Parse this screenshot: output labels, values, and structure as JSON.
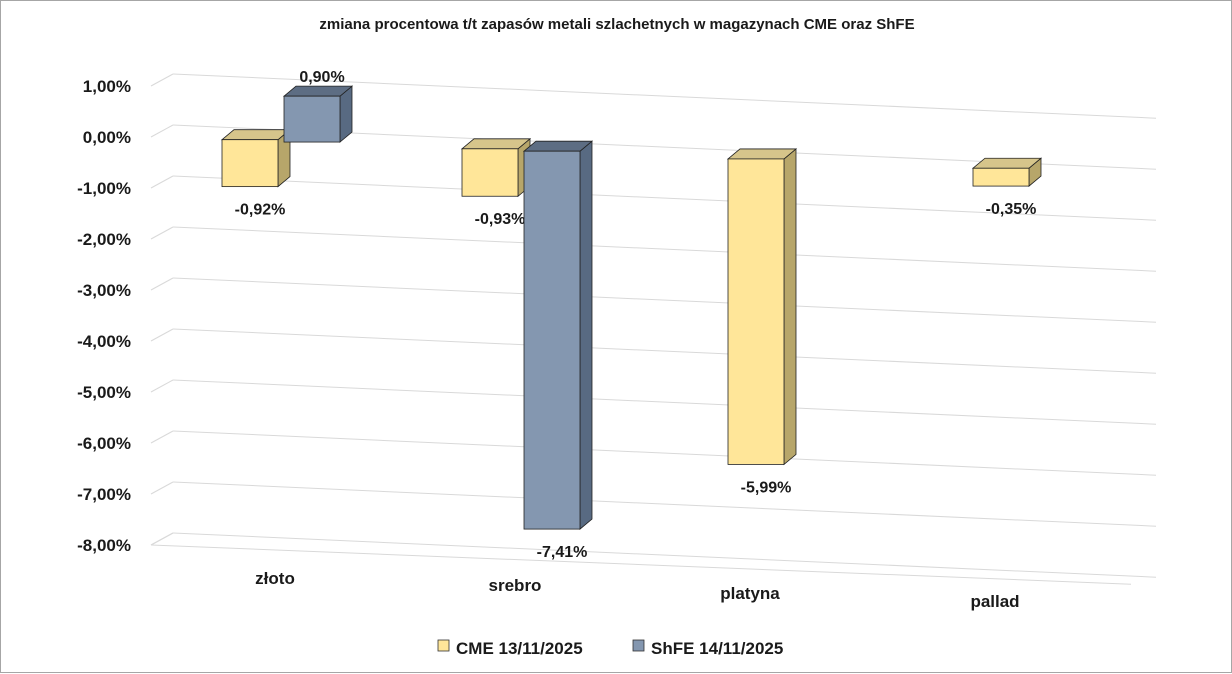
{
  "chart_data": {
    "type": "bar",
    "title": "zmiana procentowa t/t zapasów metali szlachetnych w magazynach CME oraz ShFE",
    "categories": [
      "złoto",
      "srebro",
      "platyna",
      "pallad"
    ],
    "series": [
      {
        "name": "CME 13/11/2025",
        "values": [
          -0.92,
          -0.93,
          -5.99,
          -0.35
        ],
        "labels": [
          "-0,92%",
          "-0,93%",
          "-5,99%",
          "-0,35%"
        ],
        "color": "#ffe699"
      },
      {
        "name": "ShFE 14/11/2025",
        "values": [
          0.9,
          -7.41,
          null,
          null
        ],
        "labels": [
          "0,90%",
          "-7,41%",
          "",
          ""
        ],
        "color": "#8497b0"
      }
    ],
    "yticks": [
      "1,00%",
      "0,00%",
      "-1,00%",
      "-2,00%",
      "-3,00%",
      "-4,00%",
      "-5,00%",
      "-6,00%",
      "-7,00%",
      "-8,00%"
    ],
    "ylim": [
      -8,
      1
    ],
    "xlabel": "",
    "ylabel": "",
    "grid": true,
    "legend": "bottom",
    "style": "3d-clustered-column"
  }
}
